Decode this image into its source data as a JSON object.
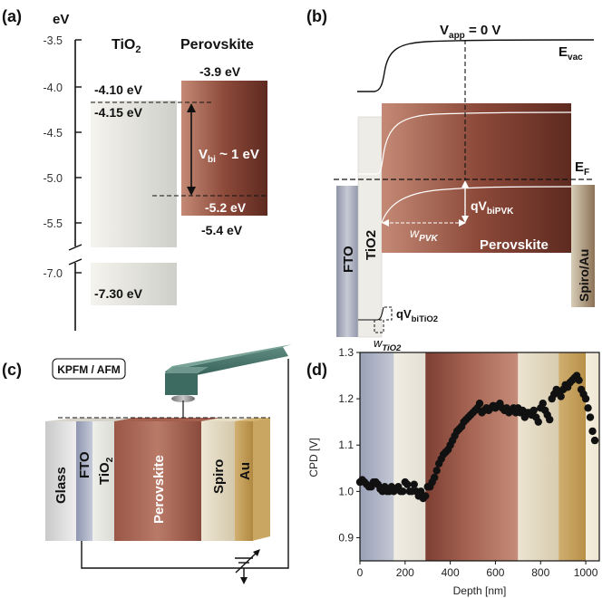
{
  "panels": {
    "a": "(a)",
    "b": "(b)",
    "c": "(c)",
    "d": "(d)"
  },
  "panel_a": {
    "axis_unit": "eV",
    "ticks": [
      "-3.5",
      "-4.0",
      "-4.5",
      "-5.0",
      "-5.5",
      "-7.0"
    ],
    "tio2_label": "TiO",
    "tio2_sub": "2",
    "perovskite_label": "Perovskite",
    "e_pvk_top": "-3.9 eV",
    "e_tio2_top": "-4.10 eV",
    "e_tio2_cb": "-4.15 eV",
    "vbi_main": "V",
    "vbi_sub": "bi",
    "vbi_rest": " ~ 1 eV",
    "e_pvk_vb1": "-5.2 eV",
    "e_pvk_vb2": "-5.4 eV",
    "e_tio2_vb": "-7.30 eV"
  },
  "panel_b": {
    "vapp_main": "V",
    "vapp_sub": "app",
    "vapp_rest": " = 0 V",
    "evac_main": "E",
    "evac_sub": "vac",
    "ef_main": "E",
    "ef_sub": "F",
    "qv_pvk_main": "qV",
    "qv_pvk_sub": "biPVK",
    "w_pvk_main": "w",
    "w_pvk_sub": "PVK",
    "perovskite": "Perovskite",
    "fto": "FTO",
    "tio2": "TiO2",
    "spiro_au": "Spiro/Au",
    "qv_tio2_main": "qV",
    "qv_tio2_sub": "biTiO2",
    "w_tio2_main": "w",
    "w_tio2_sub": "TiO2"
  },
  "panel_c": {
    "mode": "KPFM  / AFM",
    "layers": {
      "glass": "Glass",
      "fto": "FTO",
      "tio2_main": "TiO",
      "tio2_sub": "2",
      "perovskite": "Perovskite",
      "spiro": "Spiro",
      "au": "Au"
    }
  },
  "chart_data": {
    "type": "scatter",
    "xlabel": "Depth [nm]",
    "ylabel": "CPD [V]",
    "xlim": [
      0,
      1060
    ],
    "ylim": [
      0.85,
      1.3
    ],
    "x_ticks": [
      0,
      200,
      400,
      600,
      800,
      1000
    ],
    "y_ticks": [
      0.9,
      1.0,
      1.1,
      1.2,
      1.3
    ],
    "x": [
      0,
      10,
      20,
      30,
      40,
      50,
      60,
      70,
      80,
      90,
      100,
      110,
      120,
      130,
      140,
      150,
      160,
      170,
      180,
      190,
      200,
      210,
      220,
      230,
      240,
      250,
      260,
      270,
      280,
      290,
      300,
      310,
      320,
      330,
      340,
      350,
      360,
      370,
      380,
      390,
      400,
      410,
      420,
      430,
      440,
      450,
      460,
      470,
      480,
      490,
      500,
      510,
      520,
      530,
      540,
      550,
      560,
      570,
      580,
      590,
      600,
      610,
      620,
      630,
      640,
      650,
      660,
      670,
      680,
      690,
      700,
      710,
      720,
      730,
      740,
      750,
      760,
      770,
      780,
      790,
      800,
      810,
      820,
      830,
      840,
      850,
      860,
      870,
      880,
      890,
      900,
      910,
      920,
      930,
      940,
      950,
      960,
      970,
      980,
      990,
      1000,
      1010,
      1020,
      1030,
      1040
    ],
    "y": [
      1.02,
      1.025,
      1.02,
      1.015,
      1.01,
      1.01,
      1.02,
      1.02,
      1.015,
      1.005,
      1.0,
      1.01,
      1.0,
      1.0,
      1.01,
      1.0,
      1.005,
      1.01,
      1.0,
      1.0,
      1.02,
      1.015,
      1.0,
      1.0,
      1.015,
      1.0,
      0.99,
      1.0,
      0.985,
      0.99,
      1.01,
      1.01,
      1.02,
      1.03,
      1.045,
      1.06,
      1.07,
      1.08,
      1.085,
      1.09,
      1.1,
      1.11,
      1.12,
      1.13,
      1.135,
      1.14,
      1.15,
      1.155,
      1.16,
      1.165,
      1.17,
      1.175,
      1.18,
      1.19,
      1.17,
      1.175,
      1.18,
      1.175,
      1.18,
      1.185,
      1.18,
      1.185,
      1.19,
      1.18,
      1.175,
      1.18,
      1.17,
      1.175,
      1.18,
      1.17,
      1.18,
      1.17,
      1.175,
      1.16,
      1.17,
      1.17,
      1.165,
      1.175,
      1.16,
      1.15,
      1.18,
      1.19,
      1.175,
      1.165,
      1.155,
      1.2,
      1.21,
      1.22,
      1.215,
      1.205,
      1.22,
      1.23,
      1.225,
      1.235,
      1.24,
      1.245,
      1.25,
      1.24,
      1.22,
      1.21,
      1.2,
      1.18,
      1.16,
      1.13,
      1.11
    ],
    "regions": [
      {
        "name": "FTO",
        "from": 0,
        "to": 150,
        "color": "#aab0c4"
      },
      {
        "name": "TiO2",
        "from": 150,
        "to": 290,
        "color": "#ede9df"
      },
      {
        "name": "Perovskite",
        "from": 290,
        "to": 700,
        "color": "#9a5a4a"
      },
      {
        "name": "Spiro",
        "from": 700,
        "to": 880,
        "color": "#e0d6bf"
      },
      {
        "name": "Au",
        "from": 880,
        "to": 1000,
        "color": "#c9a86a"
      },
      {
        "name": "end",
        "from": 1000,
        "to": 1060,
        "color": "#f2ead9"
      }
    ],
    "point_color": "#111111"
  }
}
